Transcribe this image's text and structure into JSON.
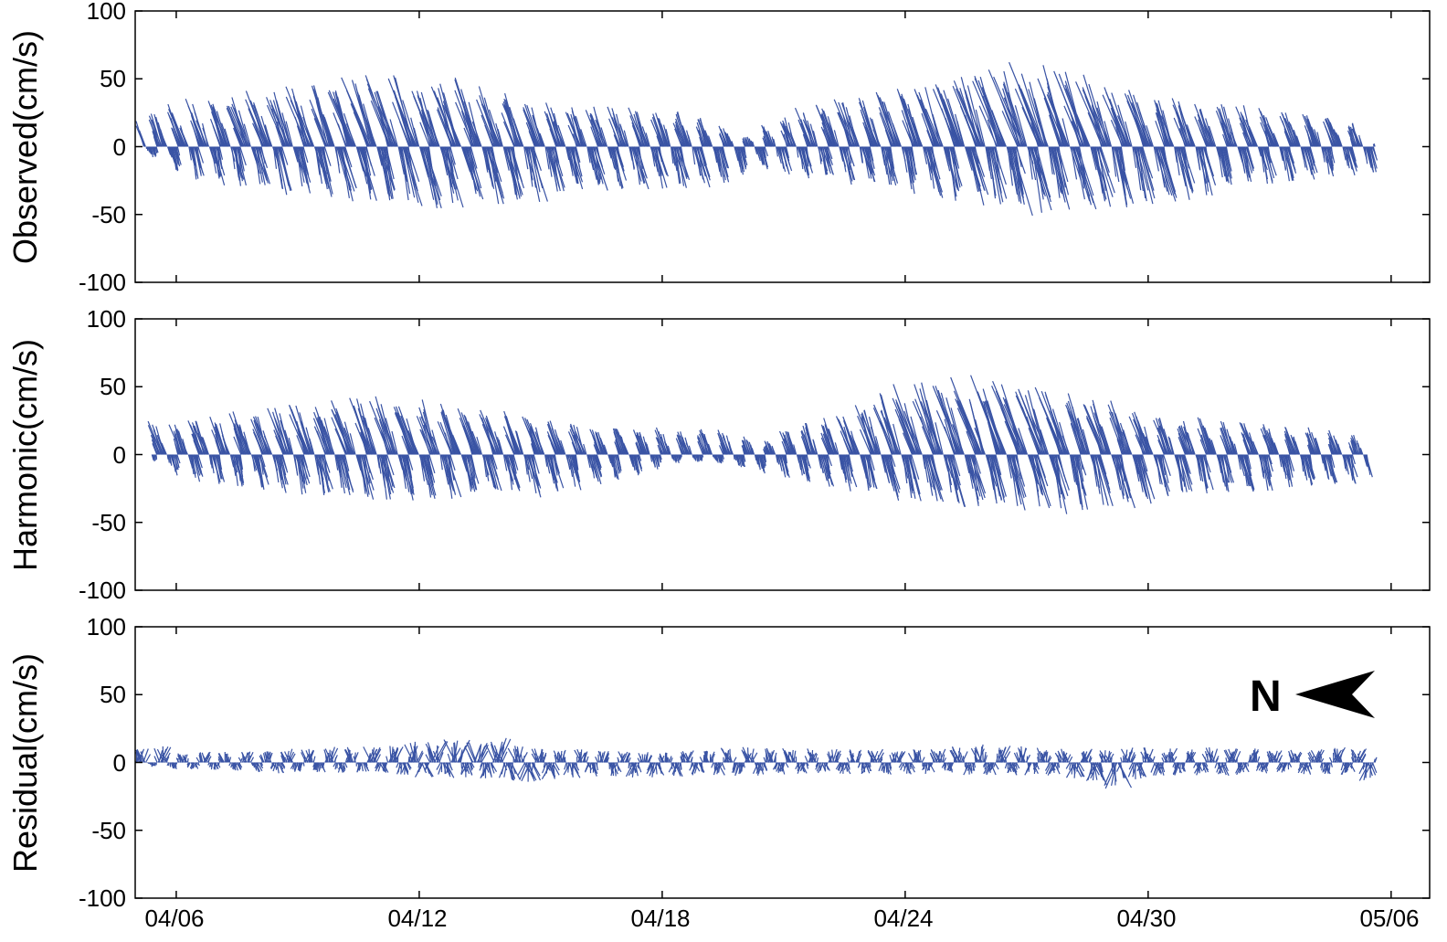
{
  "colors": {
    "series": "#3953a4",
    "axes": "#000000",
    "background": "#ffffff"
  },
  "chart_data": [
    {
      "type": "stick",
      "panel": "observed",
      "title": "",
      "ylabel": "Observed(cm/s)",
      "xlabel": "",
      "ylim": [
        -100,
        100
      ],
      "yticks": [
        100,
        50,
        0,
        -50,
        -100
      ],
      "xlim": [
        "04/05",
        "05/07"
      ],
      "xticks": [
        "04/06",
        "04/12",
        "04/18",
        "04/24",
        "04/30",
        "05/06"
      ],
      "grid": false,
      "series": [
        {
          "color": "#3953a4",
          "day": [
            0.2,
            0.5,
            1.0,
            1.5,
            2.5,
            4.0,
            5.5,
            6.5,
            7.5,
            8.5,
            9.0,
            10.0,
            11.0,
            12.5,
            13.5,
            14.5,
            15.2,
            15.8,
            16.5,
            18.0,
            19.5,
            20.5,
            21.5,
            23.0,
            24.0,
            25.0,
            26.0,
            27.0,
            28.0,
            29.0,
            30.0,
            30.6
          ],
          "upper": [
            27,
            25,
            30,
            35,
            38,
            45,
            52,
            55,
            52,
            52,
            45,
            35,
            32,
            30,
            30,
            18,
            8,
            18,
            28,
            40,
            48,
            55,
            65,
            62,
            56,
            42,
            38,
            32,
            30,
            28,
            25,
            5
          ],
          "lower": [
            -5,
            -10,
            -22,
            -28,
            -32,
            -38,
            -42,
            -48,
            -48,
            -42,
            -52,
            -38,
            -35,
            -32,
            -32,
            -28,
            -15,
            -22,
            -25,
            -30,
            -38,
            -45,
            -52,
            -50,
            -48,
            -45,
            -40,
            -32,
            -28,
            -25,
            -22,
            -20
          ]
        }
      ]
    },
    {
      "type": "stick",
      "panel": "harmonic",
      "title": "",
      "ylabel": "Harmonic(cm/s)",
      "xlabel": "",
      "ylim": [
        -100,
        100
      ],
      "yticks": [
        100,
        50,
        0,
        -50,
        -100
      ],
      "xlim": [
        "04/05",
        "05/07"
      ],
      "xticks": [
        "04/06",
        "04/12",
        "04/18",
        "04/24",
        "04/30",
        "05/06"
      ],
      "grid": false,
      "series": [
        {
          "color": "#3953a4",
          "day": [
            0.4,
            1.0,
            1.5,
            2.5,
            4.0,
            5.5,
            6.5,
            7.5,
            8.5,
            9.5,
            10.5,
            11.5,
            12.5,
            13.5,
            14.5,
            15.0,
            15.6,
            16.3,
            17.5,
            18.5,
            19.5,
            20.5,
            21.5,
            22.5,
            23.5,
            24.5,
            25.5,
            26.5,
            27.5,
            28.5,
            29.5,
            30.4
          ],
          "upper": [
            27,
            22,
            28,
            32,
            38,
            44,
            44,
            42,
            38,
            32,
            28,
            22,
            20,
            20,
            22,
            15,
            10,
            22,
            32,
            45,
            55,
            58,
            60,
            55,
            48,
            40,
            32,
            28,
            25,
            22,
            20,
            15
          ],
          "lower": [
            -5,
            -18,
            -22,
            -28,
            -32,
            -35,
            -35,
            -35,
            -35,
            -33,
            -28,
            -22,
            -15,
            -5,
            -8,
            -12,
            -15,
            -20,
            -28,
            -35,
            -40,
            -42,
            -45,
            -45,
            -42,
            -40,
            -35,
            -32,
            -30,
            -25,
            -22,
            -22
          ]
        }
      ]
    },
    {
      "type": "stick",
      "panel": "residual",
      "title": "",
      "ylabel": "Residual(cm/s)",
      "xlabel": "",
      "ylim": [
        -100,
        100
      ],
      "yticks": [
        100,
        50,
        0,
        -50,
        -100
      ],
      "xlim": [
        "04/05",
        "05/07"
      ],
      "xticks": [
        "04/06",
        "04/12",
        "04/18",
        "04/24",
        "04/30",
        "05/06"
      ],
      "grid": false,
      "annotation": "N",
      "series": [
        {
          "color": "#3953a4",
          "day": [
            0.0,
            0.5,
            1.0,
            2.0,
            3.5,
            5.0,
            6.5,
            7.5,
            8.5,
            9.0,
            9.5,
            10.5,
            11.5,
            12.5,
            14.0,
            15.5,
            17.0,
            18.5,
            20.0,
            21.0,
            22.0,
            23.0,
            24.0,
            25.0,
            26.0,
            27.0,
            28.0,
            29.0,
            30.0,
            30.6
          ],
          "upper": [
            12,
            15,
            8,
            8,
            10,
            12,
            15,
            18,
            18,
            20,
            12,
            10,
            10,
            8,
            10,
            12,
            10,
            10,
            12,
            14,
            12,
            10,
            10,
            12,
            10,
            12,
            10,
            10,
            12,
            8
          ],
          "lower": [
            5,
            -5,
            -5,
            -6,
            -8,
            -8,
            -10,
            -12,
            -12,
            -15,
            -18,
            -12,
            -10,
            -12,
            -10,
            -10,
            -8,
            -10,
            -8,
            -10,
            -10,
            -10,
            -22,
            -12,
            -10,
            -10,
            -8,
            -10,
            -10,
            -15
          ]
        }
      ]
    }
  ]
}
